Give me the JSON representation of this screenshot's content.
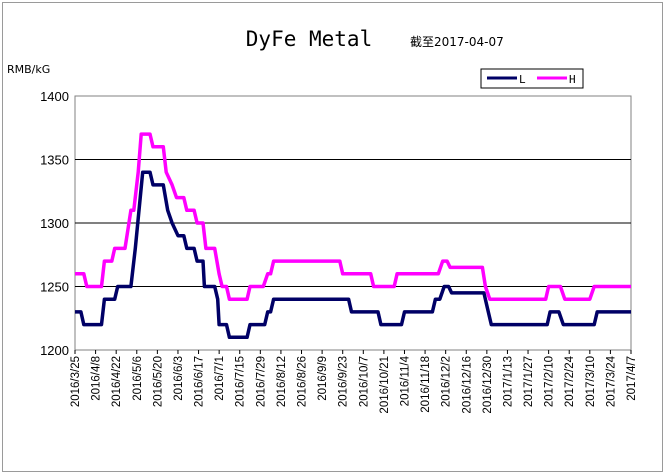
{
  "chart_data": {
    "type": "line",
    "title": "DyFe Metal",
    "subtitle": "截至2017-04-07",
    "ylabel": "RMB/kG",
    "ylim": [
      1200,
      1400
    ],
    "yticks": [
      1200,
      1250,
      1300,
      1350,
      1400
    ],
    "grid": "horizontal",
    "legend_position": "top-right",
    "x_tick_labels": [
      "2016/3/25",
      "2016/4/8",
      "2016/4/22",
      "2016/5/6",
      "2016/5/20",
      "2016/6/3",
      "2016/6/17",
      "2016/7/1",
      "2016/7/15",
      "2016/7/29",
      "2016/8/12",
      "2016/8/26",
      "2016/9/9",
      "2016/9/23",
      "2016/10/7",
      "2016/10/21",
      "2016/11/4",
      "2016/11/18",
      "2016/12/2",
      "2016/12/16",
      "2016/12/30",
      "2017/1/13",
      "2017/1/27",
      "2017/2/10",
      "2017/2/24",
      "2017/3/10",
      "2017/3/24",
      "2017/4/7"
    ],
    "series": [
      {
        "name": "L",
        "color": "#000066",
        "points": [
          [
            "2016-03-25",
            1230
          ],
          [
            "2016-03-29",
            1230
          ],
          [
            "2016-03-31",
            1220
          ],
          [
            "2016-04-12",
            1220
          ],
          [
            "2016-04-14",
            1240
          ],
          [
            "2016-04-21",
            1240
          ],
          [
            "2016-04-23",
            1250
          ],
          [
            "2016-05-02",
            1250
          ],
          [
            "2016-05-05",
            1280
          ],
          [
            "2016-05-10",
            1340
          ],
          [
            "2016-05-15",
            1340
          ],
          [
            "2016-05-17",
            1330
          ],
          [
            "2016-05-24",
            1330
          ],
          [
            "2016-05-27",
            1310
          ],
          [
            "2016-05-30",
            1300
          ],
          [
            "2016-06-03",
            1290
          ],
          [
            "2016-06-07",
            1290
          ],
          [
            "2016-06-09",
            1280
          ],
          [
            "2016-06-14",
            1280
          ],
          [
            "2016-06-16",
            1270
          ],
          [
            "2016-06-20",
            1270
          ],
          [
            "2016-06-21",
            1250
          ],
          [
            "2016-06-28",
            1250
          ],
          [
            "2016-06-30",
            1240
          ],
          [
            "2016-07-01",
            1220
          ],
          [
            "2016-07-06",
            1220
          ],
          [
            "2016-07-08",
            1210
          ],
          [
            "2016-07-20",
            1210
          ],
          [
            "2016-07-22",
            1220
          ],
          [
            "2016-08-01",
            1220
          ],
          [
            "2016-08-03",
            1230
          ],
          [
            "2016-08-05",
            1230
          ],
          [
            "2016-08-07",
            1240
          ],
          [
            "2016-09-27",
            1240
          ],
          [
            "2016-09-29",
            1230
          ],
          [
            "2016-10-17",
            1230
          ],
          [
            "2016-10-19",
            1220
          ],
          [
            "2016-11-02",
            1220
          ],
          [
            "2016-11-04",
            1230
          ],
          [
            "2016-11-23",
            1230
          ],
          [
            "2016-11-25",
            1240
          ],
          [
            "2016-11-28",
            1240
          ],
          [
            "2016-12-01",
            1250
          ],
          [
            "2016-12-04",
            1250
          ],
          [
            "2016-12-06",
            1245
          ],
          [
            "2016-12-28",
            1245
          ],
          [
            "2016-12-31",
            1230
          ],
          [
            "2017-01-02",
            1220
          ],
          [
            "2017-02-09",
            1220
          ],
          [
            "2017-02-11",
            1230
          ],
          [
            "2017-02-17",
            1230
          ],
          [
            "2017-02-20",
            1220
          ],
          [
            "2017-03-13",
            1220
          ],
          [
            "2017-03-15",
            1230
          ],
          [
            "2017-04-07",
            1230
          ]
        ]
      },
      {
        "name": "H",
        "color": "#ff00ff",
        "points": [
          [
            "2016-03-25",
            1260
          ],
          [
            "2016-03-31",
            1260
          ],
          [
            "2016-04-02",
            1250
          ],
          [
            "2016-04-12",
            1250
          ],
          [
            "2016-04-14",
            1270
          ],
          [
            "2016-04-19",
            1270
          ],
          [
            "2016-04-21",
            1280
          ],
          [
            "2016-04-28",
            1280
          ],
          [
            "2016-05-02",
            1310
          ],
          [
            "2016-05-04",
            1310
          ],
          [
            "2016-05-07",
            1340
          ],
          [
            "2016-05-09",
            1370
          ],
          [
            "2016-05-15",
            1370
          ],
          [
            "2016-05-17",
            1360
          ],
          [
            "2016-05-24",
            1360
          ],
          [
            "2016-05-26",
            1340
          ],
          [
            "2016-05-30",
            1330
          ],
          [
            "2016-06-02",
            1320
          ],
          [
            "2016-06-07",
            1320
          ],
          [
            "2016-06-09",
            1310
          ],
          [
            "2016-06-14",
            1310
          ],
          [
            "2016-06-16",
            1300
          ],
          [
            "2016-06-20",
            1300
          ],
          [
            "2016-06-22",
            1280
          ],
          [
            "2016-06-28",
            1280
          ],
          [
            "2016-07-01",
            1260
          ],
          [
            "2016-07-03",
            1250
          ],
          [
            "2016-07-06",
            1250
          ],
          [
            "2016-07-08",
            1240
          ],
          [
            "2016-07-20",
            1240
          ],
          [
            "2016-07-22",
            1250
          ],
          [
            "2016-07-31",
            1250
          ],
          [
            "2016-08-03",
            1260
          ],
          [
            "2016-08-05",
            1260
          ],
          [
            "2016-08-07",
            1270
          ],
          [
            "2016-09-21",
            1270
          ],
          [
            "2016-09-23",
            1260
          ],
          [
            "2016-10-12",
            1260
          ],
          [
            "2016-10-14",
            1250
          ],
          [
            "2016-10-28",
            1250
          ],
          [
            "2016-10-30",
            1260
          ],
          [
            "2016-11-27",
            1260
          ],
          [
            "2016-11-30",
            1270
          ],
          [
            "2016-12-03",
            1270
          ],
          [
            "2016-12-05",
            1265
          ],
          [
            "2016-12-27",
            1265
          ],
          [
            "2016-12-29",
            1250
          ],
          [
            "2017-01-01",
            1240
          ],
          [
            "2017-02-08",
            1240
          ],
          [
            "2017-02-10",
            1250
          ],
          [
            "2017-02-18",
            1250
          ],
          [
            "2017-02-21",
            1240
          ],
          [
            "2017-03-10",
            1240
          ],
          [
            "2017-03-13",
            1250
          ],
          [
            "2017-04-07",
            1250
          ]
        ]
      }
    ]
  }
}
